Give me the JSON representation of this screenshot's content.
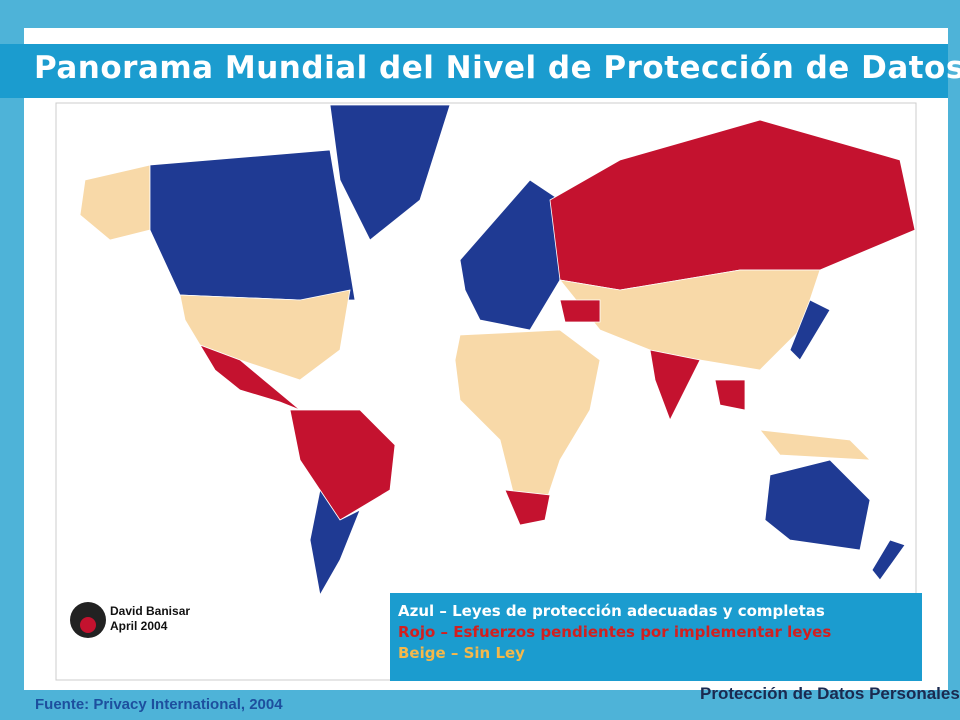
{
  "header": {
    "title": "Panorama Mundial del Nivel de Protección de Datos"
  },
  "legend": {
    "items": [
      "Azul – Leyes de protección adecuadas y completas",
      "Rojo – Esfuerzos pendientes por implementar leyes",
      "Beige – Sin Ley"
    ]
  },
  "credit": {
    "author": "David Banisar",
    "date": "April 2004"
  },
  "footer": {
    "source": "Fuente: Privacy International, 2004",
    "logo_text": "Protección de Datos Personales"
  }
}
